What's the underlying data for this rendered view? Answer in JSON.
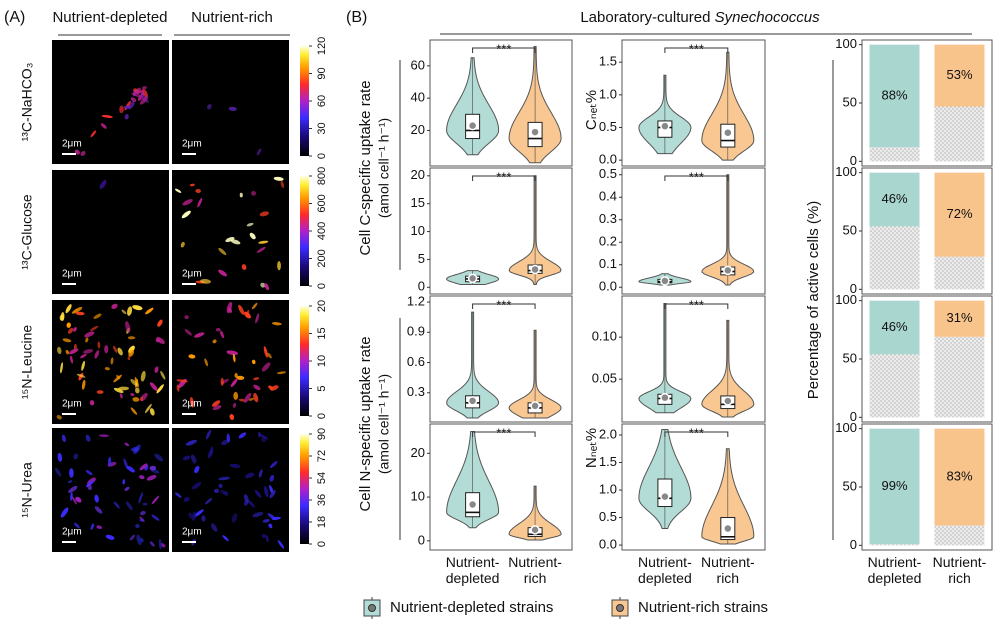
{
  "panel_a": {
    "label": "(A)",
    "columns": [
      "Nutrient-depleted",
      "Nutrient-rich"
    ],
    "scale_bar": "2μm",
    "rows": [
      {
        "label": "¹³C-NaHCO₃",
        "colorbar": {
          "lim": [
            0,
            120
          ],
          "ticks": [
            0,
            30,
            60,
            90,
            120
          ]
        }
      },
      {
        "label": "¹³C-Glucose",
        "colorbar": {
          "lim": [
            0,
            800
          ],
          "ticks": [
            0,
            200,
            400,
            600,
            800
          ]
        }
      },
      {
        "label": "¹⁵N-Leucine",
        "colorbar": {
          "lim": [
            0,
            20
          ],
          "ticks": [
            0,
            5,
            10,
            15,
            20
          ]
        }
      },
      {
        "label": "¹⁵N-Urea",
        "colorbar": {
          "lim": [
            0,
            90
          ],
          "ticks": [
            0,
            18,
            36,
            54,
            72,
            90
          ]
        }
      }
    ]
  },
  "panel_b": {
    "label": "(B)",
    "title": "Laboratory-cultured",
    "title_organism": "Synechococcus",
    "categories": [
      "Nutrient-depleted",
      "Nutrient-rich"
    ],
    "ylabels": {
      "c_rate": [
        "Cell C-specific uptake rate",
        "(amol cell⁻¹ h⁻¹)"
      ],
      "n_rate": [
        "Cell N-specific uptake rate",
        "(amol cell⁻¹ h⁻¹)"
      ],
      "c_net": "Cₙₑₜ%",
      "n_net": "Nₙₑₜ%",
      "active": "Percentage of active cells (%)"
    },
    "legend": [
      {
        "name": "Nutrient-depleted strains",
        "color": "#b2dcd5"
      },
      {
        "name": "Nutrient-rich strains",
        "color": "#f9c892"
      }
    ]
  },
  "chart_data": [
    {
      "type": "violin",
      "annotation": "***",
      "ylim": [
        -2,
        76
      ],
      "yticks": [
        20,
        40,
        60
      ],
      "groups": [
        {
          "min": 5,
          "q1": 15,
          "median": 20,
          "q3": 30,
          "max": 65,
          "mean": 23
        },
        {
          "min": 0,
          "q1": 10,
          "median": 15,
          "q3": 25,
          "max": 72,
          "mean": 19
        }
      ]
    },
    {
      "type": "violin",
      "annotation": "***",
      "ylim": [
        -1.2,
        21.4
      ],
      "yticks": [
        0,
        5,
        10,
        15,
        20
      ],
      "groups": [
        {
          "min": 0.5,
          "q1": 1,
          "median": 1.5,
          "q3": 2,
          "max": 3,
          "mean": 1.6
        },
        {
          "min": 0.5,
          "q1": 2.5,
          "median": 3,
          "q3": 4,
          "max": 20,
          "mean": 3.2
        }
      ]
    },
    {
      "type": "violin",
      "annotation": "***",
      "ylim": [
        0.01,
        1.26
      ],
      "yticks": [
        0.3,
        0.6,
        0.9,
        1.2
      ],
      "groups": [
        {
          "min": 0.05,
          "q1": 0.15,
          "median": 0.2,
          "q3": 0.27,
          "max": 1.1,
          "mean": 0.22
        },
        {
          "min": 0.05,
          "q1": 0.1,
          "median": 0.15,
          "q3": 0.2,
          "max": 0.92,
          "mean": 0.17
        }
      ]
    },
    {
      "type": "violin",
      "annotation": "***",
      "ylim": [
        -2.1,
        26.7
      ],
      "yticks": [
        0,
        10,
        20
      ],
      "groups": [
        {
          "min": 3,
          "q1": 5.5,
          "median": 6.5,
          "q3": 11,
          "max": 25,
          "mean": 8.3
        },
        {
          "min": 0.2,
          "q1": 1,
          "median": 1.5,
          "q3": 3,
          "max": 12.5,
          "mean": 2.5
        }
      ]
    },
    {
      "type": "violin",
      "annotation": "***",
      "ylim": [
        -0.09,
        1.84
      ],
      "yticks": [
        {
          "value": 0,
          "label": "0.0"
        },
        0.5,
        {
          "value": 1,
          "label": "1.0"
        },
        1.5
      ],
      "groups": [
        {
          "min": 0.1,
          "q1": 0.35,
          "median": 0.5,
          "q3": 0.6,
          "max": 1.3,
          "mean": 0.52
        },
        {
          "min": 0,
          "q1": 0.2,
          "median": 0.3,
          "q3": 0.55,
          "max": 1.65,
          "mean": 0.42
        }
      ]
    },
    {
      "type": "violin",
      "annotation": "***",
      "ylim": [
        -0.03,
        0.53
      ],
      "yticks": [
        {
          "value": 0,
          "label": "0.0"
        },
        0.1,
        0.2,
        0.3,
        0.4,
        0.5
      ],
      "groups": [
        {
          "min": 0.01,
          "q1": 0.02,
          "median": 0.025,
          "q3": 0.035,
          "max": 0.06,
          "mean": 0.028
        },
        {
          "min": 0.01,
          "q1": 0.055,
          "median": 0.07,
          "q3": 0.09,
          "max": 0.5,
          "mean": 0.075
        }
      ]
    },
    {
      "type": "violin",
      "annotation": "***",
      "ylim": [
        -0.001,
        0.149
      ],
      "yticks": [
        0.05,
        {
          "value": 0.1,
          "label": "0.10"
        }
      ],
      "groups": [
        {
          "min": 0.01,
          "q1": 0.02,
          "median": 0.027,
          "q3": 0.032,
          "max": 0.14,
          "mean": 0.028
        },
        {
          "min": 0.005,
          "q1": 0.015,
          "median": 0.02,
          "q3": 0.03,
          "max": 0.12,
          "mean": 0.024
        }
      ]
    },
    {
      "type": "violin",
      "annotation": "***",
      "ylim": [
        -0.09,
        2.2
      ],
      "yticks": [
        {
          "value": 0,
          "label": "0.0"
        },
        0.5,
        {
          "value": 1,
          "label": "1.0"
        },
        1.5,
        {
          "value": 2,
          "label": "2.0"
        }
      ],
      "groups": [
        {
          "min": 0.3,
          "q1": 0.7,
          "median": 0.85,
          "q3": 1.2,
          "max": 2.1,
          "mean": 0.88
        },
        {
          "min": 0.02,
          "q1": 0.1,
          "median": 0.15,
          "q3": 0.5,
          "max": 1.75,
          "mean": 0.3
        }
      ]
    },
    {
      "type": "stacked_bar",
      "ylim": [
        -4,
        104
      ],
      "yticks": [
        0,
        50,
        100
      ],
      "series": [
        {
          "color": "#d4d4d4",
          "values": [
            12,
            47
          ]
        },
        {
          "colors": [
            "#a9d6cf",
            "#f8c48c"
          ],
          "values": [
            88,
            53
          ],
          "value_labels": [
            "88%",
            "53%"
          ]
        }
      ]
    },
    {
      "type": "stacked_bar",
      "ylim": [
        -4,
        104
      ],
      "yticks": [
        0,
        50,
        100
      ],
      "series": [
        {
          "color": "#d4d4d4",
          "values": [
            54,
            28
          ]
        },
        {
          "colors": [
            "#a9d6cf",
            "#f8c48c"
          ],
          "values": [
            46,
            72
          ],
          "value_labels": [
            "46%",
            "72%"
          ]
        }
      ]
    },
    {
      "type": "stacked_bar",
      "ylim": [
        -4,
        104
      ],
      "yticks": [
        0,
        50,
        100
      ],
      "series": [
        {
          "color": "#d4d4d4",
          "values": [
            54,
            69
          ]
        },
        {
          "colors": [
            "#a9d6cf",
            "#f8c48c"
          ],
          "values": [
            46,
            31
          ],
          "value_labels": [
            "46%",
            "31%"
          ]
        }
      ]
    },
    {
      "type": "stacked_bar",
      "ylim": [
        -4,
        104
      ],
      "yticks": [
        0,
        50,
        100
      ],
      "series": [
        {
          "color": "#d4d4d4",
          "values": [
            1,
            17
          ]
        },
        {
          "colors": [
            "#a9d6cf",
            "#f8c48c"
          ],
          "values": [
            99,
            83
          ],
          "value_labels": [
            "99%",
            "83%"
          ]
        }
      ]
    }
  ]
}
